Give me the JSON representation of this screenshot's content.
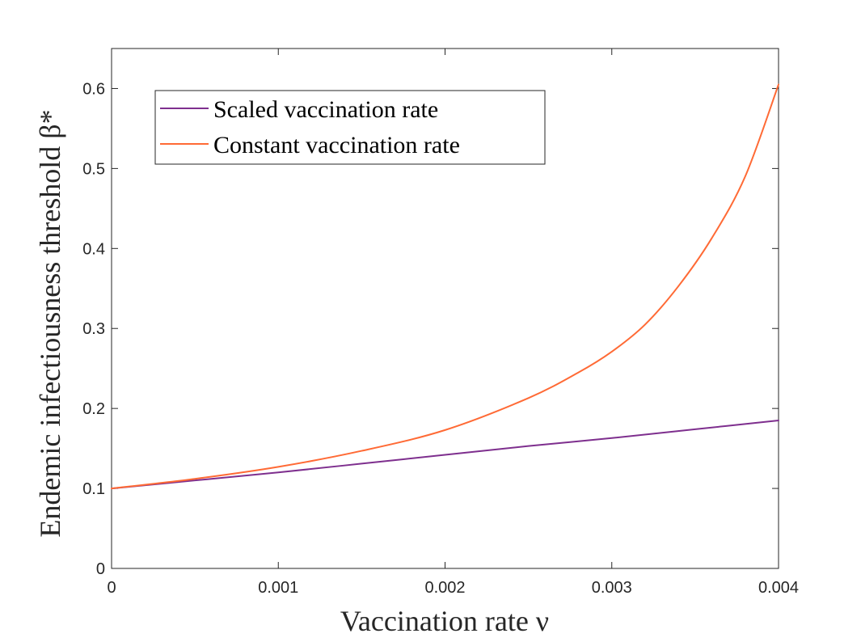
{
  "chart_data": {
    "type": "line",
    "xlabel": "Vaccination rate ν",
    "ylabel": "Endemic infectiousness threshold β*",
    "xlim": [
      0,
      0.004
    ],
    "ylim": [
      0,
      0.65
    ],
    "xticks": [
      "0",
      "0.001",
      "0.002",
      "0.003",
      "0.004"
    ],
    "yticks": [
      "0",
      "0.1",
      "0.2",
      "0.3",
      "0.4",
      "0.5",
      "0.6"
    ],
    "grid": false,
    "legend_position": "top-left",
    "series": [
      {
        "name": "Scaled vaccination rate",
        "color": "#7e2f8e",
        "x": [
          0,
          0.0005,
          0.001,
          0.0015,
          0.002,
          0.0025,
          0.003,
          0.0035,
          0.004
        ],
        "y": [
          0.1,
          0.11,
          0.12,
          0.131,
          0.142,
          0.153,
          0.163,
          0.174,
          0.185
        ]
      },
      {
        "name": "Constant vaccination rate",
        "color": "#ff6a35",
        "x": [
          0,
          0.0005,
          0.001,
          0.0015,
          0.002,
          0.0025,
          0.0028,
          0.003,
          0.0032,
          0.0034,
          0.0036,
          0.0038,
          0.004
        ],
        "y": [
          0.1,
          0.112,
          0.127,
          0.147,
          0.173,
          0.213,
          0.245,
          0.271,
          0.305,
          0.353,
          0.413,
          0.49,
          0.605
        ]
      }
    ]
  }
}
